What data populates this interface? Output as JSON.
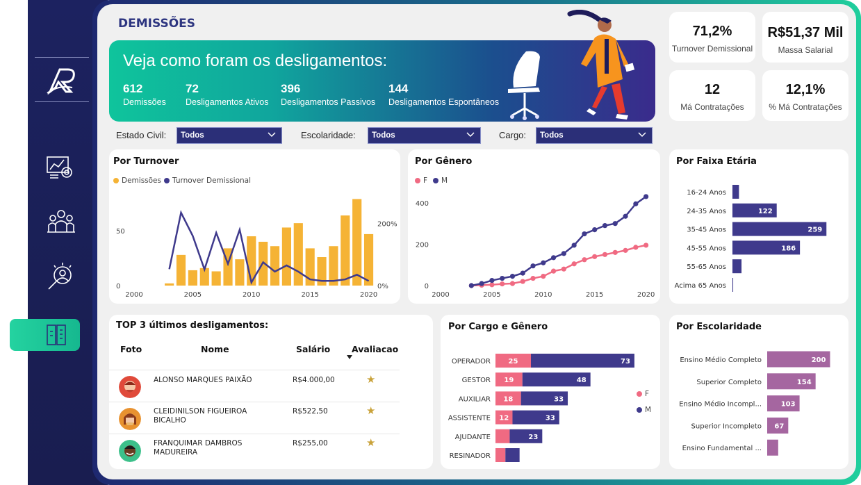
{
  "page": {
    "title": "DEMISSÕES"
  },
  "sidebar": {
    "items": [
      {
        "icon": "logo-icon"
      },
      {
        "icon": "analytics-icon"
      },
      {
        "icon": "team-icon"
      },
      {
        "icon": "recruitment-search-icon"
      },
      {
        "icon": "exit-door-icon",
        "active": true
      }
    ]
  },
  "banner": {
    "title": "Veja como foram os desligamentos:",
    "stats": [
      {
        "value": "612",
        "label": "Demissões"
      },
      {
        "value": "72",
        "label": "Desligamentos Ativos"
      },
      {
        "value": "396",
        "label": "Desligamentos Passivos"
      },
      {
        "value": "144",
        "label": "Desligamentos Espontâneos"
      }
    ]
  },
  "kpis": [
    {
      "value": "71,2%",
      "label": "Turnover Demissional"
    },
    {
      "value": "R$51,37 Mil",
      "label": "Massa Salarial"
    },
    {
      "value": "12",
      "label": "Má Contratações"
    },
    {
      "value": "12,1%",
      "label": "% Má Contratações"
    }
  ],
  "filters": [
    {
      "label": "Estado Civil:",
      "value": "Todos"
    },
    {
      "label": "Escolaridade:",
      "value": "Todos"
    },
    {
      "label": "Cargo:",
      "value": "Todos"
    }
  ],
  "colors": {
    "orange": "#f5b335",
    "navy": "#3f3a8c",
    "pink": "#f06a82",
    "purple": "#3f3a8c",
    "mauve": "#a566a0",
    "accent": "#1fcf9d"
  },
  "charts": {
    "turnover": {
      "title": "Por Turnover",
      "legend": [
        "Demissões",
        "Turnover Demissional"
      ],
      "left_ticks": [
        "0",
        "50"
      ],
      "right_ticks": [
        "0%",
        "200%"
      ],
      "x_ticks": [
        "2000",
        "2005",
        "2010",
        "2015",
        "2020"
      ]
    },
    "genero": {
      "title": "Por Gênero",
      "legend": [
        "F",
        "M"
      ],
      "y_ticks": [
        "0",
        "200",
        "400"
      ],
      "x_ticks": [
        "2000",
        "2005",
        "2010",
        "2015",
        "2020"
      ]
    },
    "faixa": {
      "title": "Por Faixa Etária"
    },
    "cargo": {
      "title": "Por Cargo e Gênero",
      "legend": [
        "F",
        "M"
      ]
    },
    "escolaridade": {
      "title": "Por Escolaridade"
    }
  },
  "chart_data": [
    {
      "type": "bar",
      "title": "Por Turnover",
      "series": [
        {
          "name": "Demissões",
          "x": [
            2003,
            2004,
            2005,
            2006,
            2007,
            2008,
            2009,
            2010,
            2011,
            2012,
            2013,
            2014,
            2015,
            2016,
            2017,
            2018,
            2019,
            2020
          ],
          "values": [
            2,
            28,
            14,
            16,
            13,
            34,
            24,
            45,
            40,
            36,
            53,
            57,
            34,
            26,
            36,
            64,
            79,
            47
          ]
        },
        {
          "name": "Turnover Demissional",
          "type": "line",
          "x": [
            2003,
            2004,
            2005,
            2006,
            2007,
            2008,
            2009,
            2010,
            2011,
            2012,
            2013,
            2014,
            2015,
            2016,
            2017,
            2018,
            2019,
            2020
          ],
          "values": [
            53,
            235,
            160,
            52,
            170,
            70,
            180,
            10,
            75,
            45,
            65,
            45,
            20,
            15,
            15,
            20,
            35,
            15
          ]
        }
      ],
      "ylim": [
        0,
        85
      ],
      "y2lim": [
        0,
        300
      ],
      "xlim": [
        2000,
        2020.5
      ]
    },
    {
      "type": "line",
      "title": "Por Gênero",
      "x": [
        2003,
        2004,
        2005,
        2006,
        2007,
        2008,
        2009,
        2010,
        2011,
        2012,
        2013,
        2014,
        2015,
        2016,
        2017,
        2018,
        2019,
        2020
      ],
      "series": [
        {
          "name": "F",
          "values": [
            0,
            2,
            4,
            8,
            10,
            20,
            35,
            45,
            70,
            80,
            105,
            125,
            140,
            150,
            160,
            170,
            185,
            195
          ]
        },
        {
          "name": "M",
          "values": [
            0,
            10,
            25,
            35,
            45,
            60,
            95,
            110,
            135,
            155,
            195,
            250,
            270,
            290,
            300,
            335,
            395,
            430
          ]
        }
      ],
      "ylim": [
        0,
        450
      ],
      "xlim": [
        2000,
        2020.5
      ]
    },
    {
      "type": "bar",
      "title": "Por Faixa Etária",
      "categories": [
        "16-24 Anos",
        "24-35 Anos",
        "35-45 Anos",
        "45-55 Anos",
        "55-65 Anos",
        "Acima 65 Anos"
      ],
      "values": [
        18,
        122,
        259,
        186,
        25,
        2
      ],
      "labels": [
        "",
        "122",
        "259",
        "186",
        "",
        ""
      ],
      "xlim": [
        0,
        270
      ]
    },
    {
      "type": "bar",
      "title": "Por Cargo e Gênero",
      "categories": [
        "OPERADOR",
        "GESTOR",
        "AUXILIAR",
        "ASSISTENTE",
        "AJUDANTE",
        "RESINADOR"
      ],
      "series": [
        {
          "name": "F",
          "values": [
            25,
            19,
            18,
            12,
            10,
            7
          ],
          "labels": [
            "25",
            "19",
            "18",
            "12",
            "",
            ""
          ]
        },
        {
          "name": "M",
          "values": [
            73,
            48,
            33,
            33,
            23,
            10
          ],
          "labels": [
            "73",
            "48",
            "33",
            "33",
            "23",
            ""
          ]
        }
      ],
      "xlim": [
        0,
        100
      ]
    },
    {
      "type": "bar",
      "title": "Por Escolaridade",
      "categories": [
        "Ensino Médio Completo",
        "Superior Completo",
        "Ensino Médio Incompl...",
        "Superior Incompleto",
        "Ensino Fundamental ..."
      ],
      "values": [
        200,
        154,
        103,
        67,
        35
      ],
      "labels": [
        "200",
        "154",
        "103",
        "67",
        ""
      ],
      "xlim": [
        0,
        210
      ]
    }
  ],
  "table": {
    "title": "TOP 3 últimos desligamentos:",
    "headers": [
      "Foto",
      "Nome",
      "Salário",
      "Avaliacao"
    ],
    "rows": [
      {
        "name": "ALONSO MARQUES PAIXÃO",
        "salary": "R$4.000,00",
        "rating": "★",
        "avatar": "avatar-red-icon"
      },
      {
        "name": "CLEIDINILSON FIGUEIROA BICALHO",
        "salary": "R$522,50",
        "rating": "★",
        "avatar": "avatar-orange-icon"
      },
      {
        "name": "FRANQUIMAR DAMBROS MADUREIRA",
        "salary": "R$255,00",
        "rating": "★",
        "avatar": "avatar-green-icon"
      }
    ]
  }
}
